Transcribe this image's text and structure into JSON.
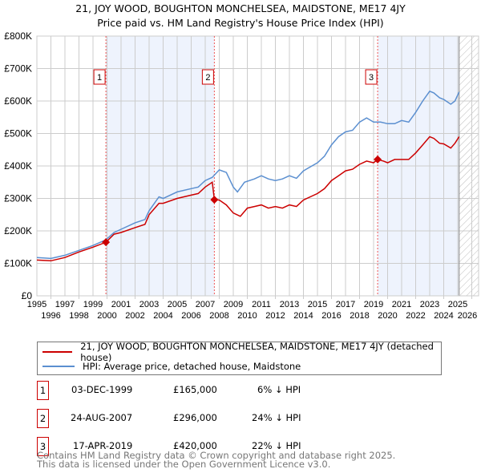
{
  "title": "21, JOY WOOD, BOUGHTON MONCHELSEA, MAIDSTONE, ME17 4JY",
  "subtitle": "Price paid vs. HM Land Registry's House Price Index (HPI)",
  "chart_data": {
    "type": "line",
    "title": "21, JOY WOOD, BOUGHTON MONCHELSEA, MAIDSTONE, ME17 4JY - Price paid vs. HM Land Registry's House Price Index (HPI)",
    "xlim": [
      1995,
      2026
    ],
    "ylim": [
      0,
      800000
    ],
    "x_ticks": [
      "1995",
      "1996",
      "1997",
      "1998",
      "1999",
      "2000",
      "2001",
      "2002",
      "2003",
      "2004",
      "2005",
      "2006",
      "2007",
      "2008",
      "2009",
      "2010",
      "2011",
      "2012",
      "2013",
      "2014",
      "2015",
      "2016",
      "2017",
      "2018",
      "2019",
      "2020",
      "2021",
      "2022",
      "2023",
      "2024",
      "2025",
      "2026"
    ],
    "y_ticks": [
      {
        "v": 0,
        "l": "£0"
      },
      {
        "v": 100000,
        "l": "£100K"
      },
      {
        "v": 200000,
        "l": "£200K"
      },
      {
        "v": 300000,
        "l": "£300K"
      },
      {
        "v": 400000,
        "l": "£400K"
      },
      {
        "v": 500000,
        "l": "£500K"
      },
      {
        "v": 600000,
        "l": "£600K"
      },
      {
        "v": 700000,
        "l": "£700K"
      },
      {
        "v": 800000,
        "l": "£800K"
      }
    ],
    "grid": true,
    "series": [
      {
        "name": "21, JOY WOOD, BOUGHTON MONCHELSEA, MAIDSTONE, ME17 4JY (detached house)",
        "color": "#cc0000",
        "x": [
          1995,
          1996,
          1997,
          1998,
          1999,
          1999.92,
          2000.5,
          2001,
          2002,
          2002.7,
          2003,
          2003.7,
          2004,
          2005,
          2006,
          2006.5,
          2007,
          2007.5,
          2007.65,
          2008,
          2008.5,
          2009,
          2009.5,
          2010,
          2010.5,
          2011,
          2011.5,
          2012,
          2012.5,
          2013,
          2013.5,
          2014,
          2015,
          2015.5,
          2016,
          2016.5,
          2017,
          2017.5,
          2018,
          2018.5,
          2019,
          2019.29,
          2019.7,
          2020,
          2020.5,
          2021,
          2021.5,
          2022,
          2022.5,
          2023,
          2023.3,
          2023.7,
          2024,
          2024.5,
          2024.8,
          2025.1
        ],
        "y": [
          110000,
          108000,
          118000,
          135000,
          150000,
          165000,
          190000,
          195000,
          210000,
          220000,
          250000,
          285000,
          285000,
          300000,
          310000,
          315000,
          335000,
          350000,
          296000,
          295000,
          280000,
          255000,
          245000,
          270000,
          275000,
          280000,
          270000,
          275000,
          270000,
          280000,
          275000,
          295000,
          315000,
          330000,
          355000,
          370000,
          385000,
          390000,
          405000,
          415000,
          410000,
          420000,
          415000,
          410000,
          420000,
          420000,
          420000,
          440000,
          465000,
          490000,
          485000,
          470000,
          468000,
          455000,
          470000,
          490000
        ]
      },
      {
        "name": "HPI: Average price, detached house, Maidstone",
        "color": "#5b8fd0",
        "x": [
          1995,
          1996,
          1996.5,
          1997,
          1998,
          1999,
          1999.9,
          2000.5,
          2001,
          2002,
          2002.7,
          2003,
          2003.7,
          2004,
          2005,
          2006,
          2006.5,
          2007,
          2007.5,
          2008,
          2008.5,
          2009,
          2009.3,
          2009.8,
          2010.5,
          2011,
          2011.5,
          2012,
          2012.5,
          2013,
          2013.5,
          2014,
          2015,
          2015.5,
          2016,
          2016.5,
          2017,
          2017.5,
          2018,
          2018.5,
          2019,
          2019.5,
          2020,
          2020.5,
          2021,
          2021.5,
          2022,
          2022.5,
          2023,
          2023.3,
          2023.7,
          2024,
          2024.5,
          2024.8,
          2025.1
        ],
        "y": [
          118000,
          115000,
          120000,
          125000,
          140000,
          155000,
          172000,
          195000,
          205000,
          225000,
          235000,
          262000,
          305000,
          300000,
          320000,
          330000,
          335000,
          355000,
          365000,
          388000,
          380000,
          335000,
          320000,
          350000,
          360000,
          370000,
          360000,
          355000,
          360000,
          370000,
          362000,
          385000,
          410000,
          430000,
          465000,
          490000,
          505000,
          510000,
          535000,
          548000,
          535000,
          535000,
          530000,
          530000,
          540000,
          535000,
          565000,
          600000,
          630000,
          625000,
          610000,
          605000,
          590000,
          600000,
          628000
        ]
      }
    ],
    "sales": [
      {
        "n": "1",
        "x": 1999.92,
        "y": 165000
      },
      {
        "n": "2",
        "x": 2007.65,
        "y": 296000
      },
      {
        "n": "3",
        "x": 2019.29,
        "y": 420000
      }
    ],
    "shaded": [
      [
        1999.92,
        2007.65
      ],
      [
        2019.29,
        2025.1
      ]
    ],
    "forecast_start": 2025.1
  },
  "legend": {
    "property": "21, JOY WOOD, BOUGHTON MONCHELSEA, MAIDSTONE, ME17 4JY (detached house)",
    "hpi": "HPI: Average price, detached house, Maidstone"
  },
  "transactions": [
    {
      "n": "1",
      "date": "03-DEC-1999",
      "price": "£165,000",
      "delta": "6% ↓ HPI"
    },
    {
      "n": "2",
      "date": "24-AUG-2007",
      "price": "£296,000",
      "delta": "24% ↓ HPI"
    },
    {
      "n": "3",
      "date": "17-APR-2019",
      "price": "£420,000",
      "delta": "22% ↓ HPI"
    }
  ],
  "footer": {
    "line1": "Contains HM Land Registry data © Crown copyright and database right 2025.",
    "line2": "This data is licensed under the Open Government Licence v3.0."
  }
}
